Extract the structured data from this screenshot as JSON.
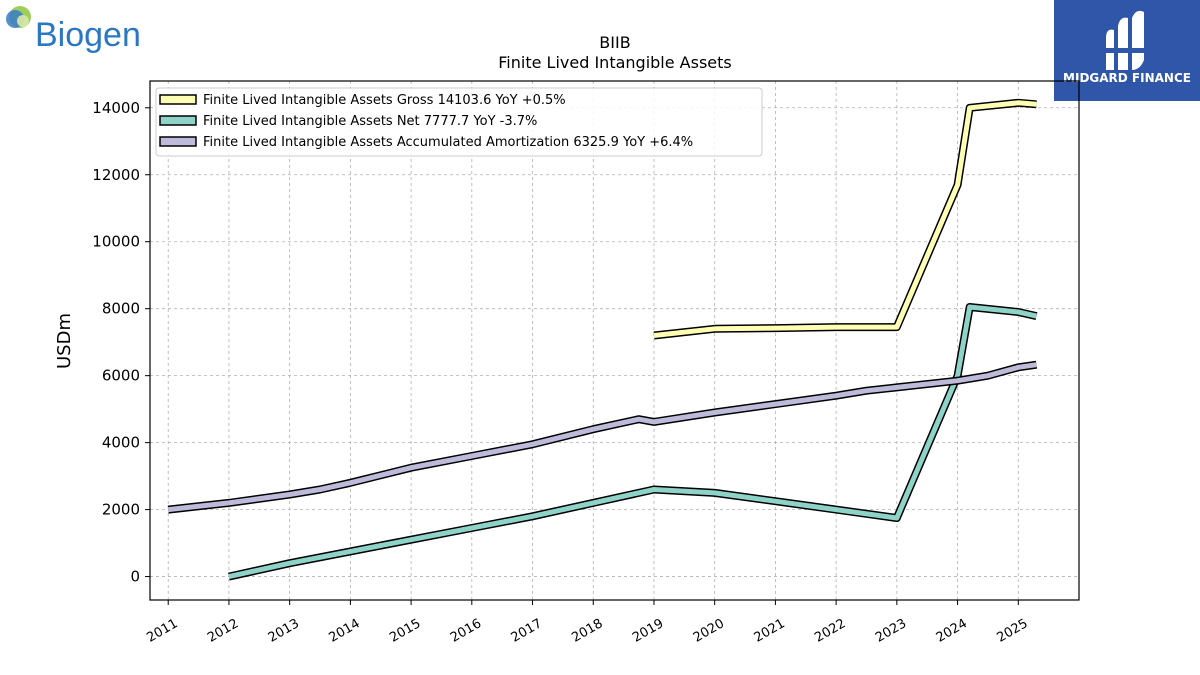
{
  "brand": {
    "company": "Biogen",
    "publisher": "MIDGARD FINANCE"
  },
  "colors": {
    "gross": "#ffffb3",
    "net": "#8dd3c7",
    "amortization": "#bebada",
    "publisher_bg": "#2f56a8",
    "company_blue": "#2b78c2"
  },
  "chart_data": {
    "type": "line",
    "title": "BIIB",
    "subtitle": "Finite Lived Intangible Assets",
    "xlabel": "",
    "ylabel": "USDm",
    "xlim": [
      2010.7,
      2026.0
    ],
    "ylim": [
      -700,
      14800
    ],
    "x_ticks": [
      2011,
      2012,
      2013,
      2014,
      2015,
      2016,
      2017,
      2018,
      2019,
      2020,
      2021,
      2022,
      2023,
      2024,
      2025
    ],
    "y_ticks": [
      0,
      2000,
      4000,
      6000,
      8000,
      10000,
      12000,
      14000
    ],
    "grid": true,
    "legend_position": "top-left",
    "series": [
      {
        "name": "Finite Lived Intangible Assets Gross  14103.6 YoY +0.5%",
        "color": "#ffffb3",
        "points": [
          [
            2019.0,
            7200
          ],
          [
            2020.0,
            7400
          ],
          [
            2021.0,
            7420
          ],
          [
            2022.0,
            7450
          ],
          [
            2023.0,
            7450
          ],
          [
            2024.0,
            11700
          ],
          [
            2024.2,
            14000
          ],
          [
            2025.0,
            14150
          ],
          [
            2025.3,
            14103.6
          ]
        ]
      },
      {
        "name": "Finite Lived Intangible Assets Net  7777.7 YoY -3.7%",
        "color": "#8dd3c7",
        "points": [
          [
            2012.0,
            0
          ],
          [
            2013.0,
            400
          ],
          [
            2014.0,
            750
          ],
          [
            2015.0,
            1100
          ],
          [
            2016.0,
            1450
          ],
          [
            2017.0,
            1800
          ],
          [
            2018.0,
            2200
          ],
          [
            2019.0,
            2600
          ],
          [
            2020.0,
            2500
          ],
          [
            2021.0,
            2250
          ],
          [
            2022.0,
            2000
          ],
          [
            2023.0,
            1750
          ],
          [
            2024.0,
            6000
          ],
          [
            2024.2,
            8050
          ],
          [
            2025.0,
            7900
          ],
          [
            2025.3,
            7777.7
          ]
        ]
      },
      {
        "name": "Finite Lived Intangible Assets Accumulated Amortization  6325.9 YoY +6.4%",
        "color": "#bebada",
        "points": [
          [
            2011.0,
            2000
          ],
          [
            2012.0,
            2200
          ],
          [
            2013.0,
            2450
          ],
          [
            2013.5,
            2600
          ],
          [
            2014.0,
            2800
          ],
          [
            2015.0,
            3250
          ],
          [
            2016.0,
            3600
          ],
          [
            2017.0,
            3950
          ],
          [
            2018.0,
            4400
          ],
          [
            2018.75,
            4700
          ],
          [
            2019.0,
            4620
          ],
          [
            2020.0,
            4900
          ],
          [
            2021.0,
            5150
          ],
          [
            2022.0,
            5400
          ],
          [
            2022.5,
            5550
          ],
          [
            2023.0,
            5650
          ],
          [
            2024.0,
            5850
          ],
          [
            2024.5,
            6000
          ],
          [
            2025.0,
            6250
          ],
          [
            2025.3,
            6325.9
          ]
        ]
      }
    ]
  }
}
